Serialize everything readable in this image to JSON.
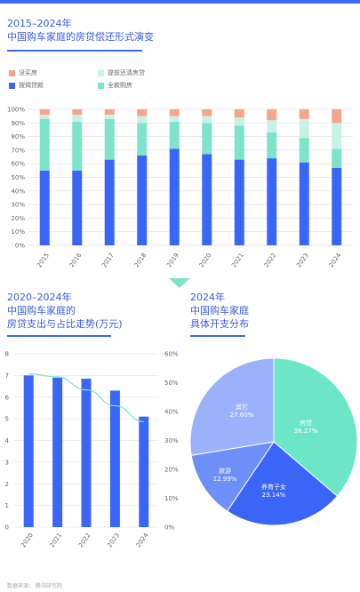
{
  "colors": {
    "other": "#f4a58f",
    "prepay": "#c9f2e6",
    "mortgage": "#3b65f6",
    "full": "#7ee3c9",
    "accent": "#3a6af5",
    "pie_education": "#3b65f6",
    "pie_travel": "#6e8ff8",
    "pie_consume": "#9bb2fa",
    "pie_housing": "#6de6c8",
    "trend_line": "#7ee3c9"
  },
  "chart1": {
    "title_line1": "2015–2024年",
    "title_line2": "中国购车家庭的房贷偿还形式演变"
  },
  "chart2": {
    "title_line1": "2020–2024年",
    "title_line2": "中国购车家庭的",
    "title_line3": "房贷支出与占比走势(万元)"
  },
  "chart3": {
    "title_line1": "2024年",
    "title_line2": "中国购车家庭",
    "title_line3": "具体开支分布"
  },
  "footer": "数据来源：   腾讯研究院",
  "chart_data": [
    {
      "type": "bar",
      "stacked": true,
      "categories": [
        "2015",
        "2016",
        "2017",
        "2018",
        "2019",
        "2020",
        "2021",
        "2022",
        "2023",
        "2024"
      ],
      "series": [
        {
          "name": "按揭贷款",
          "color_key": "mortgage",
          "values": [
            55,
            55,
            63,
            66,
            71,
            67,
            63,
            64,
            61,
            57
          ]
        },
        {
          "name": "全款购房",
          "color_key": "full",
          "values": [
            38,
            36,
            30,
            24,
            20,
            23,
            25,
            19,
            18,
            14
          ]
        },
        {
          "name": "提前还清房贷",
          "color_key": "prepay",
          "values": [
            3,
            5,
            3,
            5,
            4,
            5,
            6,
            9,
            14,
            19
          ]
        },
        {
          "name": "没买房",
          "color_key": "other",
          "values": [
            4,
            4,
            4,
            5,
            5,
            5,
            6,
            8,
            7,
            10
          ]
        }
      ],
      "legend_order": [
        0,
        1,
        2,
        3
      ],
      "yticks": [
        "0%",
        "10%",
        "20%",
        "30%",
        "40%",
        "50%",
        "60%",
        "70%",
        "80%",
        "90%",
        "100%"
      ],
      "ylim": [
        0,
        100
      ],
      "legend": "top-left"
    },
    {
      "type": "bar",
      "categories": [
        "2020",
        "2021",
        "2022",
        "2023",
        "2024"
      ],
      "values": [
        7.0,
        6.9,
        6.85,
        6.3,
        5.1
      ],
      "line": [
        53,
        52,
        47.5,
        42,
        36.5
      ],
      "yticks_left": [
        "0",
        "1",
        "2",
        "3",
        "4",
        "5",
        "6",
        "7",
        "8"
      ],
      "ylim_left": [
        0,
        8
      ],
      "yticks_right": [
        "0%",
        "10%",
        "20%",
        "30%",
        "40%",
        "50%",
        "60%"
      ],
      "ylim_right": [
        0,
        60
      ]
    },
    {
      "type": "pie",
      "slices": [
        {
          "label": "房贷",
          "value": "36.27%",
          "share": 36.27,
          "color_key": "pie_housing"
        },
        {
          "label": "养育子女",
          "value": "23.14%",
          "share": 23.14,
          "color_key": "pie_education"
        },
        {
          "label": "旅游",
          "value": "12.99%",
          "share": 12.99,
          "color_key": "pie_travel"
        },
        {
          "label": "其它",
          "value": "27.60%",
          "share": 27.6,
          "color_key": "pie_consume"
        }
      ]
    }
  ]
}
